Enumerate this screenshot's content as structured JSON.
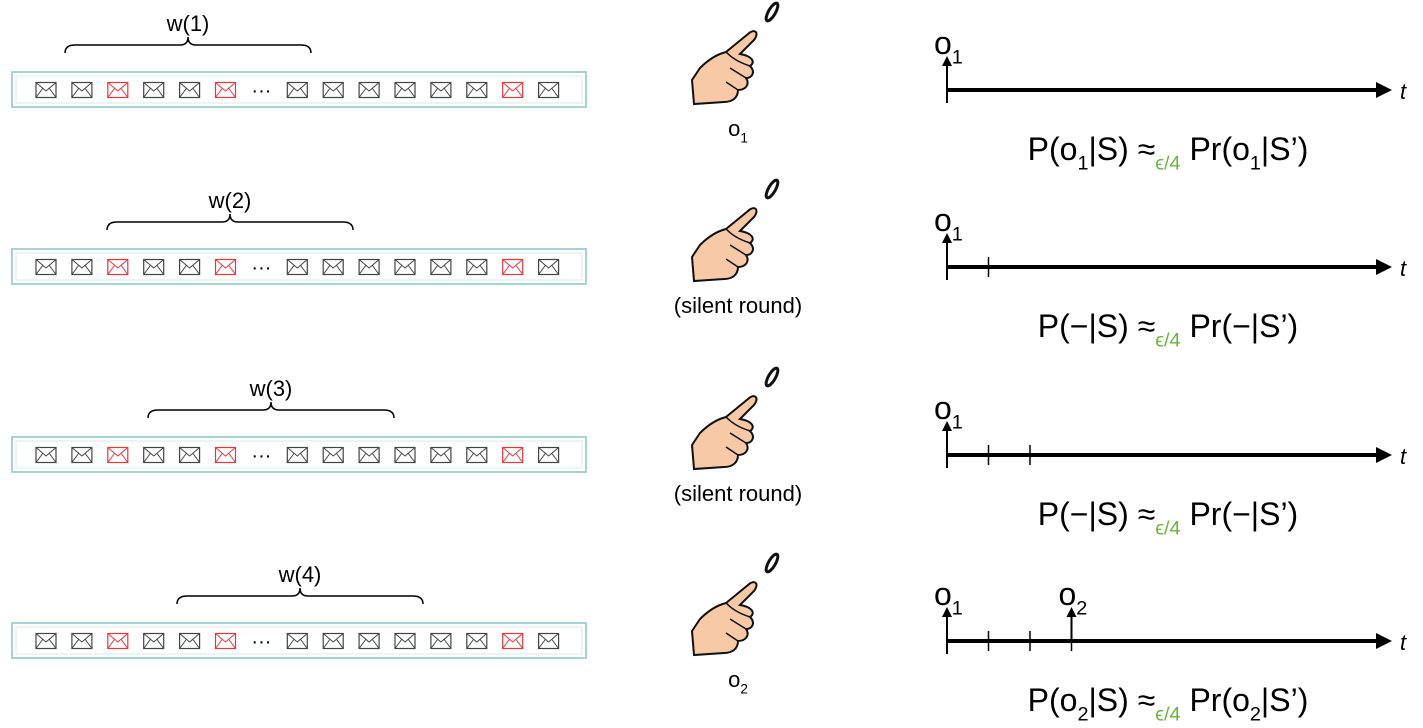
{
  "rows": [
    {
      "window": "w(1)",
      "ellipsis": "···",
      "caption": [
        {
          "text": "o"
        },
        {
          "sub": "1"
        }
      ],
      "markers": [
        [
          {
            "text": "o"
          },
          {
            "sub": "1"
          }
        ]
      ],
      "axis_label": "t",
      "formula": [
        {
          "text": "P(o"
        },
        {
          "sub": "1"
        },
        {
          "text": "|S) ≈"
        },
        {
          "sub": "ϵ/4"
        },
        {
          "text": " Pr(o"
        },
        {
          "sub": "1"
        },
        {
          "text": "|S’)"
        }
      ]
    },
    {
      "window": "w(2)",
      "ellipsis": "···",
      "caption": [
        {
          "text": "(silent round)"
        }
      ],
      "markers": [
        [
          {
            "text": "o"
          },
          {
            "sub": "1"
          }
        ]
      ],
      "axis_label": "t",
      "formula": [
        {
          "text": "P(−|S) ≈"
        },
        {
          "sub": "ϵ/4"
        },
        {
          "text": " Pr(−|S’)"
        }
      ]
    },
    {
      "window": "w(3)",
      "ellipsis": "···",
      "caption": [
        {
          "text": "(silent round)"
        }
      ],
      "markers": [
        [
          {
            "text": "o"
          },
          {
            "sub": "1"
          }
        ]
      ],
      "axis_label": "t",
      "formula": [
        {
          "text": "P(−|S) ≈"
        },
        {
          "sub": "ϵ/4"
        },
        {
          "text": " Pr(−|S’)"
        }
      ]
    },
    {
      "window": "w(4)",
      "ellipsis": "···",
      "caption": [
        {
          "text": "o"
        },
        {
          "sub": "2"
        }
      ],
      "markers": [
        [
          {
            "text": "o"
          },
          {
            "sub": "1"
          }
        ],
        [
          {
            "text": "o"
          },
          {
            "sub": "2"
          }
        ]
      ],
      "axis_label": "t",
      "formula": [
        {
          "text": "P(o"
        },
        {
          "sub": "2"
        },
        {
          "text": "|S) ≈"
        },
        {
          "sub": "ϵ/4"
        },
        {
          "text": " Pr(o"
        },
        {
          "sub": "2"
        },
        {
          "text": "|S’)"
        }
      ]
    }
  ]
}
